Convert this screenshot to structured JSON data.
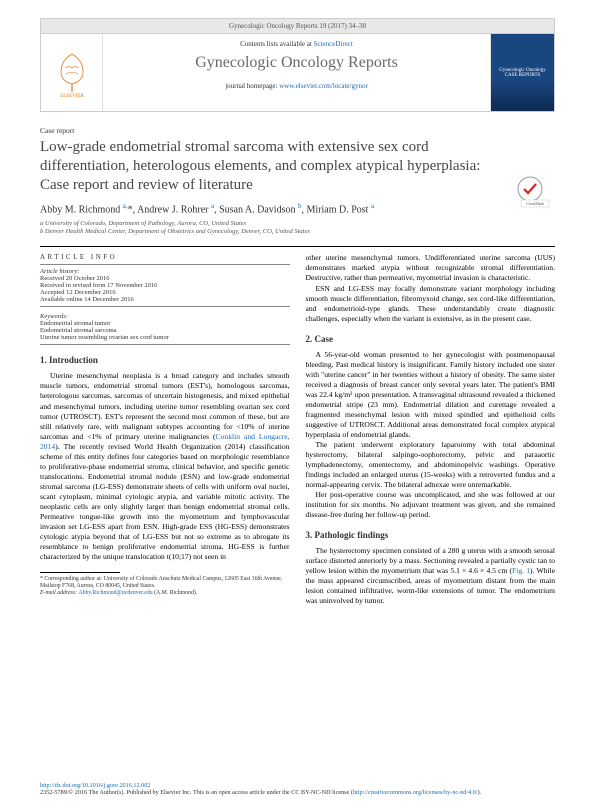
{
  "header": {
    "citation": "Gynecologic Oncology Reports 19 (2017) 34–38"
  },
  "banner": {
    "contents_prefix": "Contents lists available at ",
    "contents_link": "ScienceDirect",
    "journal": "Gynecologic Oncology Reports",
    "homepage_prefix": "journal homepage: ",
    "homepage_link": "www.elsevier.com/locate/gynor",
    "cover_text": "Gynecologic Oncology CASE REPORTS"
  },
  "article": {
    "type": "Case report",
    "title": "Low-grade endometrial stromal sarcoma with extensive sex cord differentiation, heterologous elements, and complex atypical hyperplasia: Case report and review of literature",
    "authors_html": "Abby M. Richmond <sup>a,</sup>*, Andrew J. Rohrer <sup>a</sup>, Susan A. Davidson <sup>b</sup>, Miriam D. Post <sup>a</sup>",
    "affil_a": "a University of Colorado, Department of Pathology, Aurora, CO, United States",
    "affil_b": "b Denver Health Medical Center, Department of Obstetrics and Gynecology, Denver, CO, United States"
  },
  "info": {
    "head": "ARTICLE INFO",
    "history_label": "Article history:",
    "received": "Received 20 October 2016",
    "revised": "Received in revised form 17 November 2016",
    "accepted": "Accepted 12 December 2016",
    "online": "Available online 14 December 2016",
    "keywords_label": "Keywords:",
    "kw1": "Endometrial stromal tumor",
    "kw2": "Endometrial stromal sarcoma",
    "kw3": "Uterine tumor resembling ovarian sex cord tumor"
  },
  "sections": {
    "intro_head": "1. Introduction",
    "intro_p1_a": "Uterine mesenchymal neoplasia is a broad category and includes smooth muscle tumors, endometrial stromal tumors (EST's), homologous sarcomas, heterologous sarcomas, sarcomas of uncertain histogenesis, and mixed epithelial and mesenchymal tumors, including uterine tumor resembling ovarian sex cord tumor (UTROSCT). EST's represent the second most common of these, but are still relatively rare, with malignant subtypes accounting for <10% of uterine sarcomas and <1% of primary uterine malignancies (",
    "intro_p1_link": "Conklin and Longacre, 2014",
    "intro_p1_b": "). The recently revised World Health Organization (2014) classification scheme of this entity defines four categories based on morphologic resemblance to proliferative-phase endometrial stroma, clinical behavior, and specific genetic translocations. Endometrial stromal nodule (ESN) and low-grade endometrial stromal sarcoma (LG-ESS) demonstrate sheets of cells with uniform oval nuclei, scant cytoplasm, minimal cytologic atypia, and variable mitotic activity. The neoplastic cells are only slightly larger than benign endometrial stromal cells. Permeative tongue-like growth into the myometrium and lymphovascular invasion set LG-ESS apart from ESN. High-grade ESS (HG-ESS) demonstrates cytologic atypia beyond that of LG-ESS but not so extreme as to abrogate its resemblance to benign proliferative endometrial stroma. HG-ESS is further characterized by the unique translocation t(10;17) not seen in",
    "col2_p1": "other uterine mesenchymal tumors. Undifferentiated uterine sarcoma (UUS) demonstrates marked atypia without recognizable stromal differentiation. Destructive, rather than permeative, myometrial invasion is characteristic.",
    "col2_p2": "ESN and LG-ESS may focally demonstrate variant morphology including smooth muscle differentiation, fibromyxoid change, sex cord-like differentiation, and endometrioid-type glands. These understandably create diagnostic challenges, especially when the variant is extensive, as in the present case.",
    "case_head": "2. Case",
    "case_p1": "A 56-year-old woman presented to her gynecologist with postmenopausal bleeding. Past medical history is insignificant. Family history included one sister with \"uterine cancer\" in her twenties without a history of obesity. The same sister received a diagnosis of breast cancer only several years later. The patient's BMI was 22.4 kg/m² upon presentation. A transvaginal ultrasound revealed a thickened endometrial stripe (23 mm). Endometrial dilation and curettage revealed a fragmented mesenchymal lesion with mixed spindled and epithelioid cells suggestive of UTROSCT. Additional areas demonstrated focal complex atypical hyperplasia of endometrial glands.",
    "case_p2": "The patient underwent exploratory laparotomy with total abdominal hysterectomy, bilateral salpingo-oophorectomy, pelvic and paraaortic lymphadenectomy, omentectomy, and abdominopelvic washings. Operative findings included an enlarged uterus (15-weeks) with a retroverted fundus and a normal-appearing cervix. The bilateral adnexae were unremarkable.",
    "case_p3": "Her post-operative course was uncomplicated, and she was followed at our institution for six months. No adjuvant treatment was given, and she remained disease-free during her follow-up period.",
    "path_head": "3. Pathologic findings",
    "path_p1_a": "The hysterectomy specimen consisted of a 280 g uterus with a smooth serosal surface distorted anteriorly by a mass. Sectioning revealed a partially cystic tan to yellow lesion within the myometrium that was 5.1 × 4.6 × 4.5 cm (",
    "path_p1_link": "Fig. 1",
    "path_p1_b": "). While the mass appeared circumscribed, areas of myometrium distant from the main lesion contained infiltrative, worm-like extensions of tumor. The endometrium was uninvolved by tumor."
  },
  "footnote": {
    "corr": "* Corresponding author at: University of Colorado Anschutz Medical Campus, 12605 East 16th Avenue, Mailstop F768, Aurora, CO 80045, United States.",
    "email_label": "E-mail address: ",
    "email": "Abby.Richmond@ucdenver.edu",
    "email_suffix": " (A.M. Richmond)."
  },
  "bottom": {
    "doi": "http://dx.doi.org/10.1016/j.gore.2016.12.002",
    "copyright_a": "2352-5789/© 2016 The Author(s). Published by Elsevier Inc. This is an open access article under the CC BY-NC-ND license (",
    "copyright_link": "http://creativecommons.org/licenses/by-nc-nd/4.0/",
    "copyright_b": ")."
  }
}
